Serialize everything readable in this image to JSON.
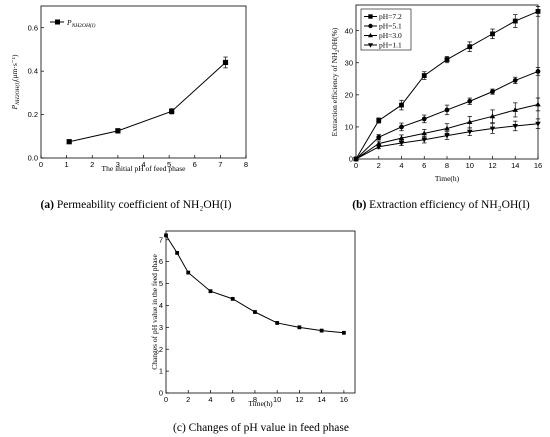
{
  "chart_data": [
    {
      "id": "a",
      "type": "line",
      "title": "",
      "caption_prefix": "(a)",
      "caption": "Permeability coefficient of NH₂OH(I)",
      "xlabel": "The initial pH of feed phase",
      "ylabel_main": "P",
      "ylabel_sub": "NH2OH(I)",
      "ylabel_unit": "(μm·s⁻¹)",
      "xlim": [
        0,
        8
      ],
      "ylim": [
        0,
        0.7
      ],
      "xticks": [
        0,
        1,
        2,
        3,
        4,
        5,
        6,
        7,
        8
      ],
      "yticks": [
        0.0,
        0.2,
        0.4,
        0.6
      ],
      "ytick_labels": [
        "0.0",
        "0.2",
        "0.4",
        "0.6"
      ],
      "legend_position": "top-left",
      "series": [
        {
          "name": "P",
          "name_sub": "NH2OH(I)",
          "marker": "square",
          "x": [
            1.1,
            3.0,
            5.1,
            7.2
          ],
          "y": [
            0.075,
            0.125,
            0.215,
            0.44
          ],
          "err": [
            0.008,
            0.01,
            0.012,
            0.025
          ]
        }
      ]
    },
    {
      "id": "b",
      "type": "line",
      "title": "",
      "caption_prefix": "(b)",
      "caption": "Extraction efficiency of NH₂OH(I)",
      "xlabel": "Time(h)",
      "ylabel_main": "Extraction efficiency of NH",
      "ylabel_sub": "2",
      "ylabel_tail": "OH(%)",
      "xlim": [
        0,
        16
      ],
      "ylim": [
        0,
        48
      ],
      "xticks": [
        0,
        2,
        4,
        6,
        8,
        10,
        12,
        14,
        16
      ],
      "yticks": [
        0,
        10,
        20,
        30,
        40
      ],
      "legend_position": "top-left",
      "series": [
        {
          "name": "pH=7.2",
          "marker": "square",
          "x": [
            0,
            2,
            4,
            6,
            8,
            10,
            12,
            14,
            16
          ],
          "y": [
            0,
            12.0,
            16.8,
            26.0,
            31.0,
            35.0,
            39.0,
            43.0,
            46.0
          ],
          "err": [
            0,
            0.8,
            1.5,
            1.2,
            1.0,
            1.5,
            1.5,
            2.0,
            1.5
          ]
        },
        {
          "name": "pH=5.1",
          "marker": "circle",
          "x": [
            0,
            2,
            4,
            6,
            8,
            10,
            12,
            14,
            16
          ],
          "y": [
            0,
            6.8,
            10.0,
            12.5,
            15.3,
            18.0,
            21.0,
            24.5,
            27.3
          ],
          "err": [
            0,
            0.8,
            1.2,
            1.2,
            1.5,
            1.0,
            0.8,
            1.0,
            1.2
          ]
        },
        {
          "name": "pH=3.0",
          "marker": "triangle-up",
          "x": [
            0,
            2,
            4,
            6,
            8,
            10,
            12,
            14,
            16
          ],
          "y": [
            0,
            4.8,
            6.5,
            8.0,
            9.5,
            11.5,
            13.3,
            15.3,
            17.0
          ],
          "err": [
            0,
            0.8,
            1.0,
            1.2,
            1.5,
            1.8,
            2.0,
            2.2,
            2.0
          ]
        },
        {
          "name": "pH=1.1",
          "marker": "triangle-down",
          "x": [
            0,
            2,
            4,
            6,
            8,
            10,
            12,
            14,
            16
          ],
          "y": [
            0,
            3.8,
            5.0,
            6.0,
            7.3,
            8.5,
            9.5,
            10.3,
            11.0
          ],
          "err": [
            0,
            0.6,
            0.8,
            1.0,
            1.2,
            1.2,
            1.5,
            1.5,
            1.5
          ]
        }
      ]
    },
    {
      "id": "c",
      "type": "line",
      "title": "",
      "caption_prefix": "(c)",
      "caption": "Changes of pH value in feed phase",
      "xlabel": "Time(h)",
      "ylabel": "Changes of pH value in the feed phase",
      "xlim": [
        0,
        17
      ],
      "ylim": [
        0,
        7.4
      ],
      "xticks": [
        0,
        2,
        4,
        6,
        8,
        10,
        12,
        14,
        16
      ],
      "yticks": [
        0,
        1,
        2,
        3,
        4,
        5,
        6,
        7
      ],
      "series": [
        {
          "name": "",
          "marker": "square",
          "x": [
            0,
            1,
            2,
            4,
            6,
            8,
            10,
            12,
            14,
            16
          ],
          "y": [
            7.2,
            6.4,
            5.5,
            4.65,
            4.3,
            3.7,
            3.2,
            3.0,
            2.85,
            2.75
          ]
        }
      ]
    }
  ]
}
